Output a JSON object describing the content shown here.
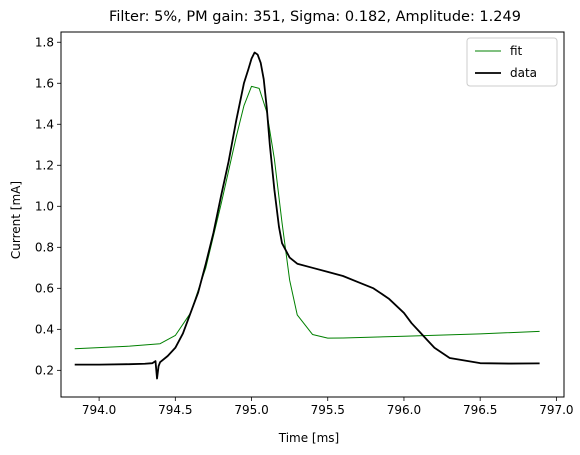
{
  "chart_data": {
    "type": "line",
    "title": "Filter: 5%, PM gain: 351, Sigma: 0.182, Amplitude: 1.249",
    "xlabel": "Time [ms]",
    "ylabel": "Current [mA]",
    "xlim": [
      793.75,
      797.05
    ],
    "ylim": [
      0.07,
      1.85
    ],
    "xticks": [
      794.0,
      794.5,
      795.0,
      795.5,
      796.0,
      796.5,
      797.0
    ],
    "xtick_labels": [
      "794.0",
      "794.5",
      "795.0",
      "795.5",
      "796.0",
      "796.5",
      "797.0"
    ],
    "yticks": [
      0.2,
      0.4,
      0.6,
      0.8,
      1.0,
      1.2,
      1.4,
      1.6,
      1.8
    ],
    "ytick_labels": [
      "0.2",
      "0.4",
      "0.6",
      "0.8",
      "1.0",
      "1.2",
      "1.4",
      "1.6",
      "1.8"
    ],
    "grid": false,
    "legend_position": "top-right",
    "series": [
      {
        "name": "fit",
        "color": "#008000",
        "style": "thin",
        "x": [
          793.84,
          794.2,
          794.4,
          794.5,
          794.6,
          794.7,
          794.8,
          794.9,
          794.95,
          795.0,
          795.05,
          795.1,
          795.15,
          795.2,
          795.25,
          795.3,
          795.4,
          795.5,
          795.6,
          796.0,
          796.5,
          796.89
        ],
        "y": [
          0.305,
          0.318,
          0.33,
          0.37,
          0.48,
          0.7,
          1.01,
          1.34,
          1.49,
          1.585,
          1.575,
          1.46,
          1.23,
          0.92,
          0.64,
          0.47,
          0.375,
          0.357,
          0.358,
          0.366,
          0.378,
          0.39
        ]
      },
      {
        "name": "data",
        "color": "#000000",
        "style": "thick",
        "x": [
          793.84,
          794.0,
          794.2,
          794.3,
          794.35,
          794.37,
          794.38,
          794.39,
          794.4,
          794.45,
          794.5,
          794.55,
          794.6,
          794.65,
          794.7,
          794.75,
          794.8,
          794.85,
          794.9,
          794.95,
          794.98,
          795.0,
          795.02,
          795.04,
          795.06,
          795.08,
          795.1,
          795.12,
          795.15,
          795.18,
          795.2,
          795.25,
          795.3,
          795.4,
          795.5,
          795.6,
          795.7,
          795.8,
          795.9,
          796.0,
          796.05,
          796.1,
          796.15,
          796.2,
          796.3,
          796.5,
          796.7,
          796.89
        ],
        "y": [
          0.228,
          0.228,
          0.23,
          0.232,
          0.235,
          0.245,
          0.16,
          0.22,
          0.24,
          0.27,
          0.31,
          0.38,
          0.48,
          0.58,
          0.72,
          0.87,
          1.05,
          1.22,
          1.42,
          1.6,
          1.67,
          1.72,
          1.75,
          1.74,
          1.7,
          1.62,
          1.48,
          1.3,
          1.08,
          0.9,
          0.82,
          0.75,
          0.72,
          0.7,
          0.68,
          0.66,
          0.63,
          0.6,
          0.55,
          0.48,
          0.43,
          0.39,
          0.35,
          0.31,
          0.26,
          0.235,
          0.233,
          0.234
        ]
      }
    ]
  }
}
